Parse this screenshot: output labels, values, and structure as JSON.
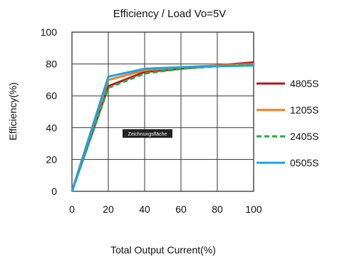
{
  "chart_data": {
    "type": "line",
    "title": "Efficiency / Load  Vo=5V",
    "xlabel": "Total Output Current(%)",
    "ylabel": "Efficiency(%)",
    "xlim": [
      0,
      100
    ],
    "ylim": [
      0,
      100
    ],
    "x_ticks": [
      "0",
      "20",
      "40",
      "60",
      "80",
      "100"
    ],
    "y_ticks": [
      "0",
      "20",
      "40",
      "60",
      "80",
      "100"
    ],
    "grid": true,
    "legend_position": "right",
    "x": [
      0,
      20,
      40,
      60,
      80,
      100
    ],
    "series": [
      {
        "name": "4805S",
        "color": "#c0121b",
        "dash": "solid",
        "values": [
          0,
          66,
          75,
          77,
          79,
          81
        ]
      },
      {
        "name": "1205S",
        "color": "#f07d1e",
        "dash": "solid",
        "values": [
          0,
          70,
          76,
          78,
          79,
          80
        ]
      },
      {
        "name": "2405S",
        "color": "#2aa84a",
        "dash": "dashed",
        "values": [
          0,
          65,
          74,
          77,
          78.5,
          79.5
        ]
      },
      {
        "name": "0505S",
        "color": "#1aa6df",
        "dash": "solid",
        "values": [
          0,
          72,
          77,
          78,
          78.5,
          79
        ]
      }
    ],
    "annotation": "Zeichnungsfläche"
  }
}
